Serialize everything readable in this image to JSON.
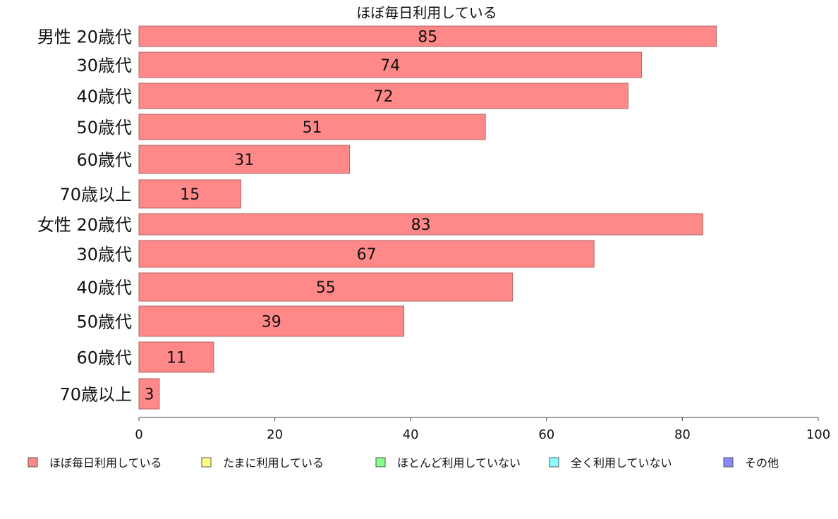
{
  "chart_data": {
    "type": "bar",
    "orientation": "horizontal",
    "title": "ほぼ毎日利用している",
    "categories": [
      "男性 20歳代",
      "30歳代",
      "40歳代",
      "50歳代",
      "60歳代",
      "70歳以上",
      "女性 20歳代",
      "30歳代",
      "40歳代",
      "50歳代",
      "60歳代",
      "70歳以上"
    ],
    "series": [
      {
        "name": "ほぼ毎日利用している",
        "color": "#ff8888",
        "values": [
          85,
          74,
          72,
          51,
          31,
          15,
          83,
          67,
          55,
          39,
          11,
          3
        ]
      }
    ],
    "xlim": [
      0,
      100
    ],
    "xticks": [
      0,
      20,
      40,
      60,
      80,
      100
    ],
    "grid": false,
    "legend_position": "bottom",
    "legend": [
      {
        "label": "ほぼ毎日利用している",
        "color": "#ff8888"
      },
      {
        "label": "たまに利用している",
        "color": "#ffff88"
      },
      {
        "label": "ほとんど利用していない",
        "color": "#88ff88"
      },
      {
        "label": "全く利用していない",
        "color": "#88ffff"
      },
      {
        "label": "その他",
        "color": "#8888ff"
      }
    ]
  }
}
